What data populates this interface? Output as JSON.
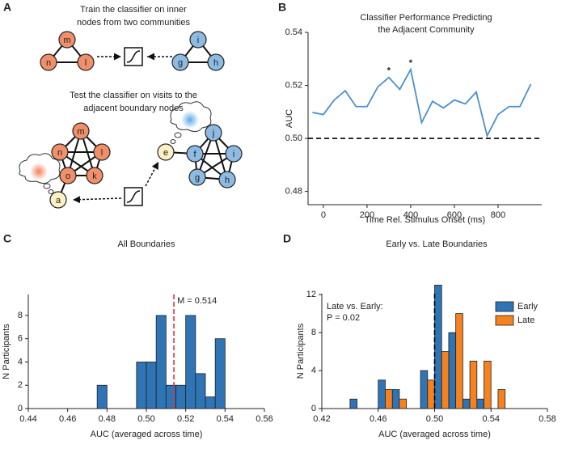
{
  "diagram": {
    "panel": "A",
    "train_text": [
      "Train the classifier on inner",
      "nodes from two communities"
    ],
    "train_nodes": [
      "m",
      "n",
      "l",
      "i",
      "g",
      "h"
    ],
    "test_text": [
      "Test the classifier on visits to the",
      "adjacent boundary nodes"
    ],
    "test_nodes": [
      "m",
      "n",
      "l",
      "o",
      "k",
      "a",
      "j",
      "f",
      "i",
      "g",
      "h",
      "e"
    ]
  },
  "chart_data": [
    {
      "type": "line",
      "panel": "B",
      "title": [
        "Classifier Performance Predicting",
        "the Adjacent Community"
      ],
      "x_label": "Time Rel. Stimulus Onset (ms)",
      "y_label": "AUC",
      "x": [
        -50,
        0,
        50,
        100,
        150,
        200,
        250,
        300,
        350,
        400,
        450,
        500,
        550,
        600,
        650,
        700,
        750,
        800,
        850,
        900,
        950
      ],
      "values": [
        0.5098,
        0.509,
        0.5145,
        0.518,
        0.512,
        0.512,
        0.5195,
        0.523,
        0.5185,
        0.526,
        0.506,
        0.514,
        0.5115,
        0.5145,
        0.513,
        0.5175,
        0.501,
        0.509,
        0.512,
        0.512,
        0.5205
      ],
      "color": "#4a8fd0",
      "xlim": [
        -70,
        1000
      ],
      "xticks": [
        0,
        200,
        400,
        600,
        800
      ],
      "ylim": [
        0.475,
        0.54
      ],
      "yticks": [
        0.48,
        {
          "value": 0.5,
          "label": "0.50"
        },
        0.52,
        0.54
      ],
      "annotations": [
        {
          "text": "*",
          "x": 300
        },
        {
          "text": "*",
          "x": 400
        }
      ],
      "reference_line": {
        "axis": "y",
        "value": 0.5,
        "color": "#000000"
      }
    },
    {
      "type": "histogram",
      "panel": "C",
      "title": "All Boundaries",
      "x_label": "AUC (averaged across time)",
      "y_label": "N Participants",
      "bins": [
        0.475,
        0.48,
        0.485,
        0.49,
        0.495,
        0.5,
        0.505,
        0.51,
        0.515,
        0.52,
        0.525,
        0.53,
        0.535,
        0.54
      ],
      "values": [
        2,
        0,
        0,
        0,
        4,
        4,
        8,
        2,
        2,
        8,
        3,
        1,
        6
      ],
      "color": "#2f74b5",
      "xlim": [
        0.44,
        0.56
      ],
      "xticks": [
        0.44,
        0.46,
        0.48,
        {
          "value": 0.5,
          "label": "0.50"
        },
        0.52,
        0.54,
        0.56
      ],
      "ylim": [
        0,
        9.8
      ],
      "yticks": [
        0,
        2,
        4,
        6,
        8
      ],
      "reference_line": {
        "axis": "x",
        "value": 0.514,
        "color": "#e0303a",
        "label": "M = 0.514"
      }
    },
    {
      "type": "histogram",
      "panel": "D",
      "title": "Early vs. Late Boundaries",
      "x_label": "AUC (averaged across time)",
      "y_label": "N Participants",
      "bins": [
        0.44,
        0.45,
        0.46,
        0.47,
        0.48,
        0.49,
        0.5,
        0.51,
        0.52,
        0.53,
        0.54,
        0.55
      ],
      "series": [
        {
          "name": "Early",
          "color": "#2f74b5",
          "values": [
            1,
            0,
            3,
            2,
            0,
            4,
            13,
            8,
            1,
            1,
            0
          ]
        },
        {
          "name": "Late",
          "color": "#f5821f",
          "values": [
            0,
            0,
            2,
            1,
            0,
            3,
            6,
            10,
            5,
            5,
            2
          ]
        }
      ],
      "legend": "upper right",
      "xlim": [
        0.42,
        0.58
      ],
      "xticks": [
        0.42,
        0.46,
        {
          "value": 0.5,
          "label": "0.50"
        },
        0.54,
        0.58
      ],
      "ylim": [
        0,
        12.1
      ],
      "yticks": [
        0,
        4,
        8,
        12
      ],
      "annotation": [
        "Late vs. Early:",
        "P = 0.02"
      ],
      "reference_line": {
        "axis": "x",
        "value": 0.5,
        "color": "#000000"
      }
    }
  ]
}
